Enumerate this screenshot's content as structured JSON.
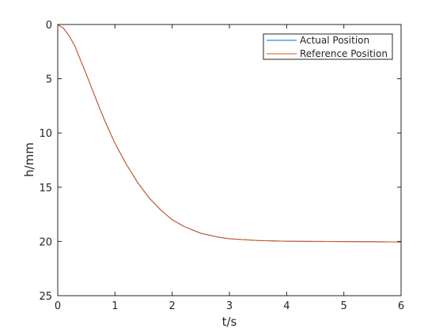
{
  "chart_data": {
    "type": "line",
    "xlabel": "t/s",
    "ylabel": "h/mm",
    "xlim": [
      0,
      6
    ],
    "ylim": [
      0,
      25
    ],
    "y_direction": "reversed",
    "xticks": [
      "0",
      "1",
      "2",
      "3",
      "4",
      "5",
      "6"
    ],
    "yticks": [
      "0",
      "5",
      "10",
      "15",
      "20",
      "25"
    ],
    "grid": false,
    "legend_position": "top-right",
    "x": [
      0,
      0.1,
      0.2,
      0.3,
      0.4,
      0.5,
      0.6,
      0.7,
      0.8,
      0.9,
      1.0,
      1.2,
      1.4,
      1.6,
      1.8,
      2.0,
      2.2,
      2.5,
      2.8,
      3.0,
      3.5,
      4.0,
      4.5,
      5.0,
      5.5,
      6.0
    ],
    "series": [
      {
        "name": "Actual Position",
        "color": "#0072bd",
        "values": [
          0,
          0.35,
          1.05,
          2.0,
          3.3,
          4.6,
          5.95,
          7.3,
          8.6,
          9.8,
          10.95,
          12.9,
          14.6,
          16.0,
          17.1,
          18.0,
          18.6,
          19.25,
          19.6,
          19.75,
          19.92,
          19.98,
          20.0,
          20.02,
          20.03,
          20.05
        ]
      },
      {
        "name": "Reference Position",
        "color": "#d95319",
        "values": [
          0,
          0.35,
          1.05,
          2.0,
          3.3,
          4.6,
          5.95,
          7.3,
          8.6,
          9.8,
          10.95,
          12.9,
          14.6,
          16.0,
          17.1,
          18.0,
          18.6,
          19.25,
          19.6,
          19.75,
          19.92,
          19.98,
          20.0,
          20.02,
          20.03,
          20.05
        ]
      }
    ]
  }
}
